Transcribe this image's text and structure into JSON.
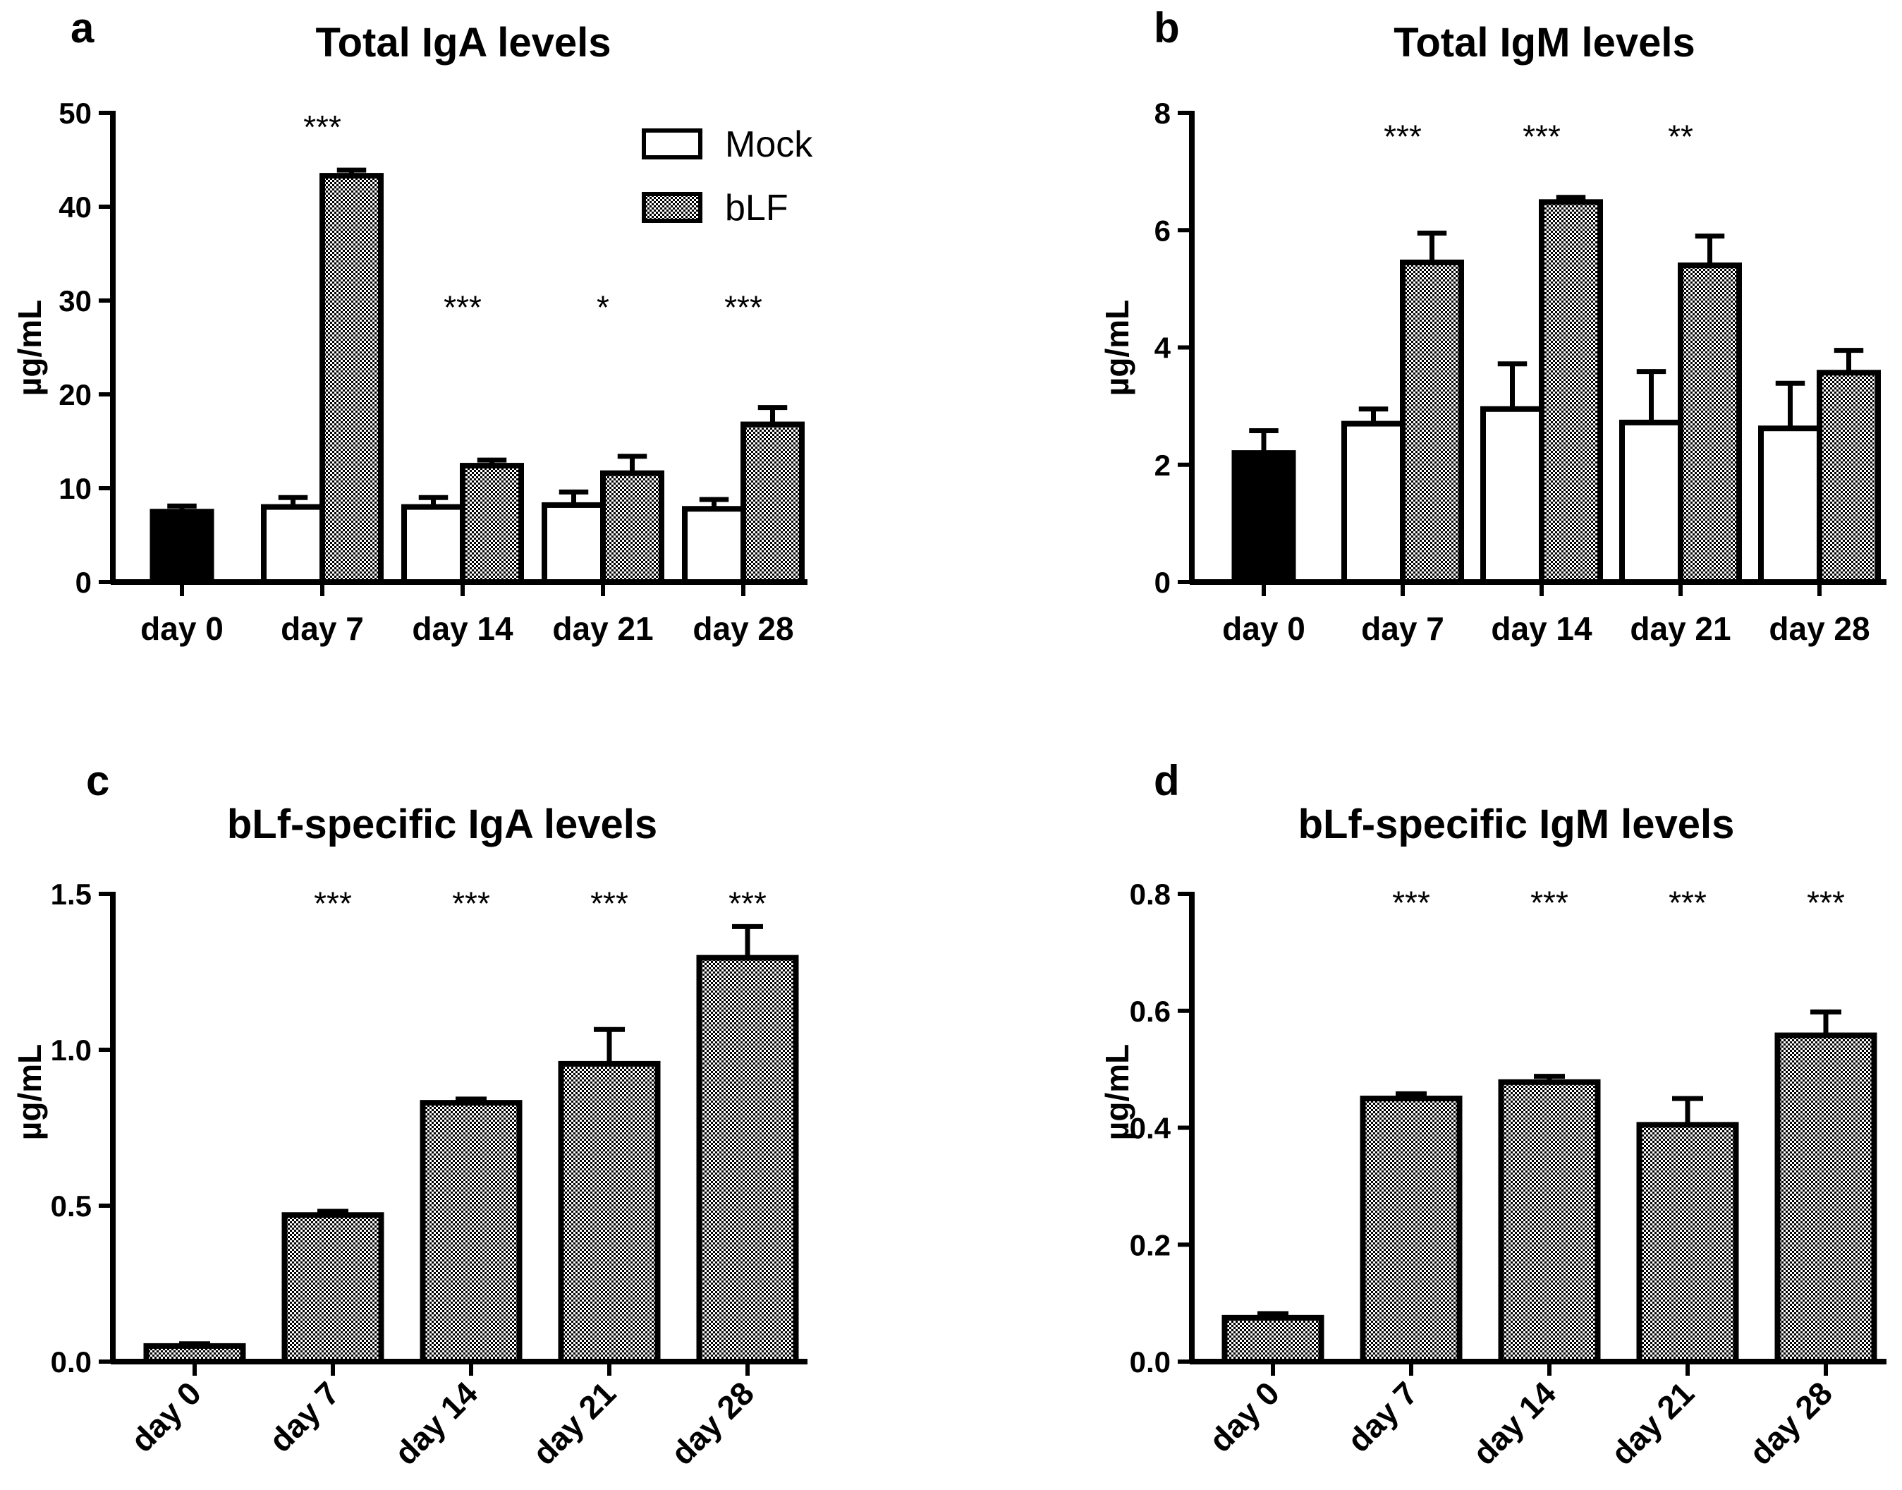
{
  "colors": {
    "axis": "#000000",
    "mock_fill": "#ffffff",
    "day0_fill": "#000000",
    "hatch_dark": "#000000",
    "hatch_light": "#ffffff"
  },
  "chart_data": [
    {
      "panel_label": "a",
      "type": "bar",
      "title": "Total IgA levels",
      "ylabel": "µg/mL",
      "ylim": [
        0,
        50
      ],
      "yticks": [
        "0",
        "10",
        "20",
        "30",
        "40",
        "50"
      ],
      "categories": [
        "day 0",
        "day 7",
        "day 14",
        "day 21",
        "day 28"
      ],
      "legend": [
        "Mock",
        "bLF"
      ],
      "legend_position": "top-right",
      "series": [
        {
          "name": "Mock",
          "values": [
            7.5,
            8.0,
            8.0,
            8.2,
            7.8
          ],
          "errors": [
            0.6,
            1.0,
            1.0,
            1.4,
            1.0
          ]
        },
        {
          "name": "bLF",
          "values": [
            null,
            43.3,
            12.4,
            11.6,
            16.8
          ],
          "errors": [
            null,
            0.6,
            0.6,
            1.8,
            1.8
          ]
        }
      ],
      "day0_solid": true,
      "significance": [
        "",
        "***",
        "***",
        "*",
        "***"
      ],
      "significance_y": [
        null,
        48.5,
        29.3,
        29.3,
        29.3
      ]
    },
    {
      "panel_label": "b",
      "type": "bar",
      "title": "Total IgM levels",
      "ylabel": "µg/mL",
      "ylim": [
        0,
        8
      ],
      "yticks": [
        "0",
        "2",
        "4",
        "6",
        "8"
      ],
      "categories": [
        "day 0",
        "day 7",
        "day 14",
        "day 21",
        "day 28"
      ],
      "series": [
        {
          "name": "Mock",
          "values": [
            2.2,
            2.7,
            2.95,
            2.72,
            2.62
          ],
          "errors": [
            0.38,
            0.25,
            0.77,
            0.87,
            0.77
          ]
        },
        {
          "name": "bLF",
          "values": [
            null,
            5.45,
            6.48,
            5.4,
            3.57
          ],
          "errors": [
            null,
            0.5,
            0.08,
            0.5,
            0.38
          ]
        }
      ],
      "day0_solid": true,
      "significance": [
        "",
        "***",
        "***",
        "**",
        ""
      ],
      "significance_y": [
        null,
        7.6,
        7.6,
        7.6,
        null
      ]
    },
    {
      "panel_label": "c",
      "type": "bar",
      "title": "bLf-specific IgA levels",
      "ylabel": "µg/mL",
      "ylim": [
        0,
        1.5
      ],
      "yticks": [
        "0.0",
        "0.5",
        "1.0",
        "1.5"
      ],
      "categories": [
        "day 0",
        "day 7",
        "day 14",
        "day 21",
        "day 28"
      ],
      "series": [
        {
          "name": "bLF",
          "values": [
            0.05,
            0.47,
            0.83,
            0.955,
            1.295
          ],
          "errors": [
            0.007,
            0.012,
            0.012,
            0.11,
            0.1
          ]
        }
      ],
      "significance": [
        "",
        "***",
        "***",
        "***",
        "***"
      ],
      "significance_y": [
        null,
        1.47,
        1.47,
        1.47,
        1.47
      ]
    },
    {
      "panel_label": "d",
      "type": "bar",
      "title": "bLf-specific IgM levels",
      "ylabel": "µg/mL",
      "ylim": [
        0,
        0.8
      ],
      "yticks": [
        "0.0",
        "0.2",
        "0.4",
        "0.6",
        "0.8"
      ],
      "categories": [
        "day 0",
        "day 7",
        "day 14",
        "day 21",
        "day 28"
      ],
      "series": [
        {
          "name": "bLF",
          "values": [
            0.075,
            0.45,
            0.478,
            0.405,
            0.558
          ],
          "errors": [
            0.007,
            0.008,
            0.01,
            0.045,
            0.04
          ]
        }
      ],
      "significance": [
        "",
        "***",
        "***",
        "***",
        "***"
      ],
      "significance_y": [
        null,
        0.785,
        0.785,
        0.785,
        0.785
      ]
    }
  ]
}
